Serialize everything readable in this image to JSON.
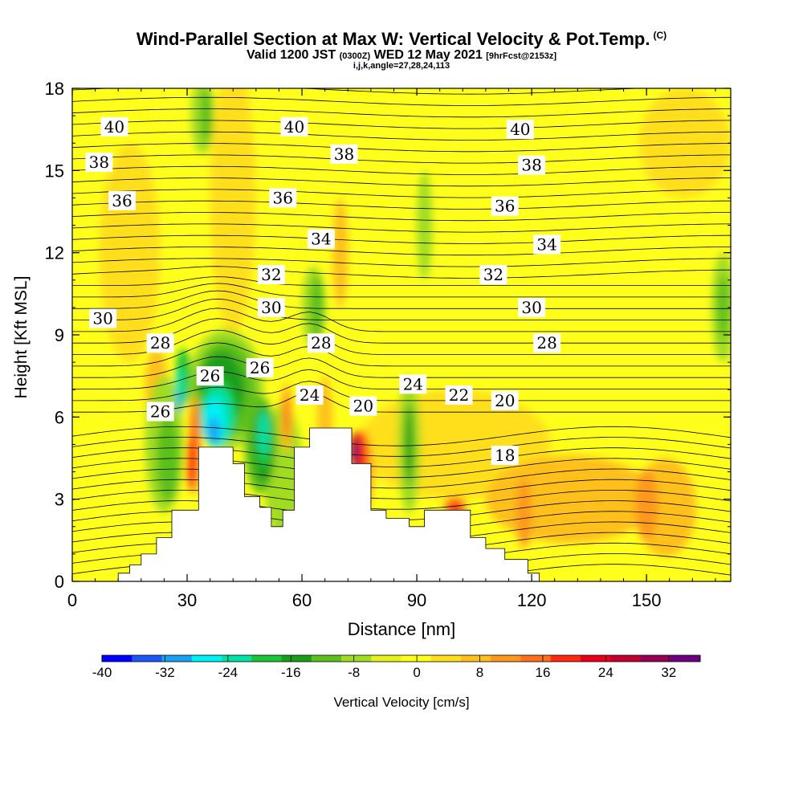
{
  "header": {
    "title": "Wind-Parallel Section at Max W: Vertical Velocity & Pot.Temp.",
    "title_mark": "(C)",
    "valid_prefix": "Valid 1200 JST",
    "valid_utc": "(0300Z)",
    "valid_date": "WED 12 May 2021",
    "forecast": "[9hrFcst@2153z]",
    "indices": "i,j,k,angle=27,28,24,113"
  },
  "chart_data": {
    "type": "contour",
    "xlabel": "Distance [nm]",
    "ylabel": "Height [Kft MSL]",
    "xlim": [
      0,
      172
    ],
    "ylim": [
      0,
      18
    ],
    "x_ticks": [
      "0",
      "30",
      "60",
      "90",
      "120",
      "150"
    ],
    "y_ticks": [
      "0",
      "3",
      "6",
      "9",
      "12",
      "15",
      "18"
    ],
    "colorbar": {
      "label": "Vertical Velocity [cm/s]",
      "range": [
        -40,
        36
      ],
      "tick_labels": [
        "-40",
        "-32",
        "-24",
        "-16",
        "-8",
        "0",
        "8",
        "16",
        "24",
        "32"
      ],
      "colors": [
        "#0000ff",
        "#1c56f5",
        "#1aa0f0",
        "#00f0f4",
        "#00e2a8",
        "#1ac638",
        "#1a9e1a",
        "#5cc01e",
        "#a0dc24",
        "#e6f21e",
        "#ffff1c",
        "#ffdf1c",
        "#ffc01c",
        "#ff981c",
        "#ff701c",
        "#ff2a10",
        "#e8001a",
        "#c0002e",
        "#960056",
        "#6c0080"
      ]
    },
    "theta_contour_labels": [
      {
        "value": "40",
        "x": 11,
        "y": 16.6
      },
      {
        "value": "40",
        "x": 58,
        "y": 16.6
      },
      {
        "value": "40",
        "x": 117,
        "y": 16.5
      },
      {
        "value": "38",
        "x": 7,
        "y": 15.3
      },
      {
        "value": "38",
        "x": 71,
        "y": 15.6
      },
      {
        "value": "38",
        "x": 120,
        "y": 15.2
      },
      {
        "value": "36",
        "x": 13,
        "y": 13.9
      },
      {
        "value": "36",
        "x": 55,
        "y": 14.0
      },
      {
        "value": "36",
        "x": 113,
        "y": 13.7
      },
      {
        "value": "34",
        "x": 65,
        "y": 12.5
      },
      {
        "value": "34",
        "x": 124,
        "y": 12.3
      },
      {
        "value": "32",
        "x": 52,
        "y": 11.2
      },
      {
        "value": "32",
        "x": 110,
        "y": 11.2
      },
      {
        "value": "30",
        "x": 8,
        "y": 9.6
      },
      {
        "value": "30",
        "x": 52,
        "y": 10.0
      },
      {
        "value": "30",
        "x": 120,
        "y": 10.0
      },
      {
        "value": "28",
        "x": 23,
        "y": 8.7
      },
      {
        "value": "28",
        "x": 65,
        "y": 8.7
      },
      {
        "value": "28",
        "x": 124,
        "y": 8.7
      },
      {
        "value": "26",
        "x": 36,
        "y": 7.5
      },
      {
        "value": "26",
        "x": 49,
        "y": 7.8
      },
      {
        "value": "26",
        "x": 23,
        "y": 6.2
      },
      {
        "value": "24",
        "x": 62,
        "y": 6.8
      },
      {
        "value": "24",
        "x": 89,
        "y": 7.2
      },
      {
        "value": "22",
        "x": 101,
        "y": 6.8
      },
      {
        "value": "20",
        "x": 76,
        "y": 6.4
      },
      {
        "value": "20",
        "x": 113,
        "y": 6.6
      },
      {
        "value": "18",
        "x": 113,
        "y": 4.6
      }
    ],
    "terrain": [
      [
        0,
        0
      ],
      [
        12,
        0.3
      ],
      [
        15,
        0.6
      ],
      [
        18,
        1.0
      ],
      [
        22,
        1.6
      ],
      [
        26,
        2.6
      ],
      [
        30,
        2.6
      ],
      [
        33,
        4.9
      ],
      [
        40,
        4.9
      ],
      [
        42,
        4.3
      ],
      [
        45,
        3.1
      ],
      [
        49,
        2.7
      ],
      [
        52,
        2.0
      ],
      [
        55,
        2.6
      ],
      [
        58,
        4.9
      ],
      [
        62,
        5.6
      ],
      [
        69,
        5.6
      ],
      [
        73,
        4.3
      ],
      [
        78,
        2.6
      ],
      [
        82,
        2.3
      ],
      [
        88,
        2.0
      ],
      [
        92,
        2.6
      ],
      [
        100,
        2.6
      ],
      [
        104,
        1.6
      ],
      [
        108,
        1.2
      ],
      [
        113,
        0.8
      ],
      [
        119,
        0.3
      ],
      [
        122,
        0
      ]
    ]
  }
}
